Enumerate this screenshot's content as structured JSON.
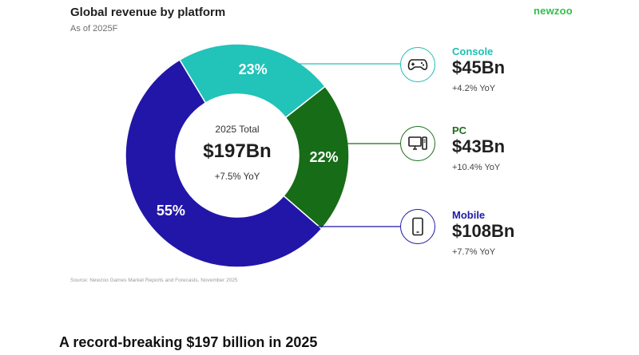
{
  "header": {
    "title": "Global revenue by platform",
    "subtitle": "As of 2025F",
    "brand": "newzoo"
  },
  "center": {
    "label": "2025 Total",
    "value": "$197Bn",
    "yoy": "+7.5% YoY"
  },
  "source": "Source: Newzoo Games Market Reports and Forecasts, November 2025",
  "headline": "A record-breaking $197 billion in 2025",
  "legend": [
    {
      "name": "Console",
      "value": "$45Bn",
      "yoy": "+4.2% YoY",
      "icon": "gamepad-icon",
      "color": "#1fbfb3"
    },
    {
      "name": "PC",
      "value": "$43Bn",
      "yoy": "+10.4% YoY",
      "icon": "desktop-icon",
      "color": "#1d6e1d"
    },
    {
      "name": "Mobile",
      "value": "$108Bn",
      "yoy": "+7.7% YoY",
      "icon": "smartphone-icon",
      "color": "#1f1aa8"
    }
  ],
  "chart_data": {
    "type": "pie",
    "variant": "donut",
    "title": "Global revenue by platform",
    "subtitle": "As of 2025F",
    "center_total": "$197Bn",
    "series": [
      {
        "name": "Console",
        "value": 23,
        "label": "23%",
        "revenue": "$45Bn",
        "yoy": "+4.2% YoY",
        "color": "#22c3b9"
      },
      {
        "name": "PC",
        "value": 22,
        "label": "22%",
        "revenue": "$43Bn",
        "yoy": "+10.4% YoY",
        "color": "#176c17"
      },
      {
        "name": "Mobile",
        "value": 55,
        "label": "55%",
        "revenue": "$108Bn",
        "yoy": "+7.7% YoY",
        "color": "#2216a8"
      }
    ],
    "legend_position": "right"
  }
}
